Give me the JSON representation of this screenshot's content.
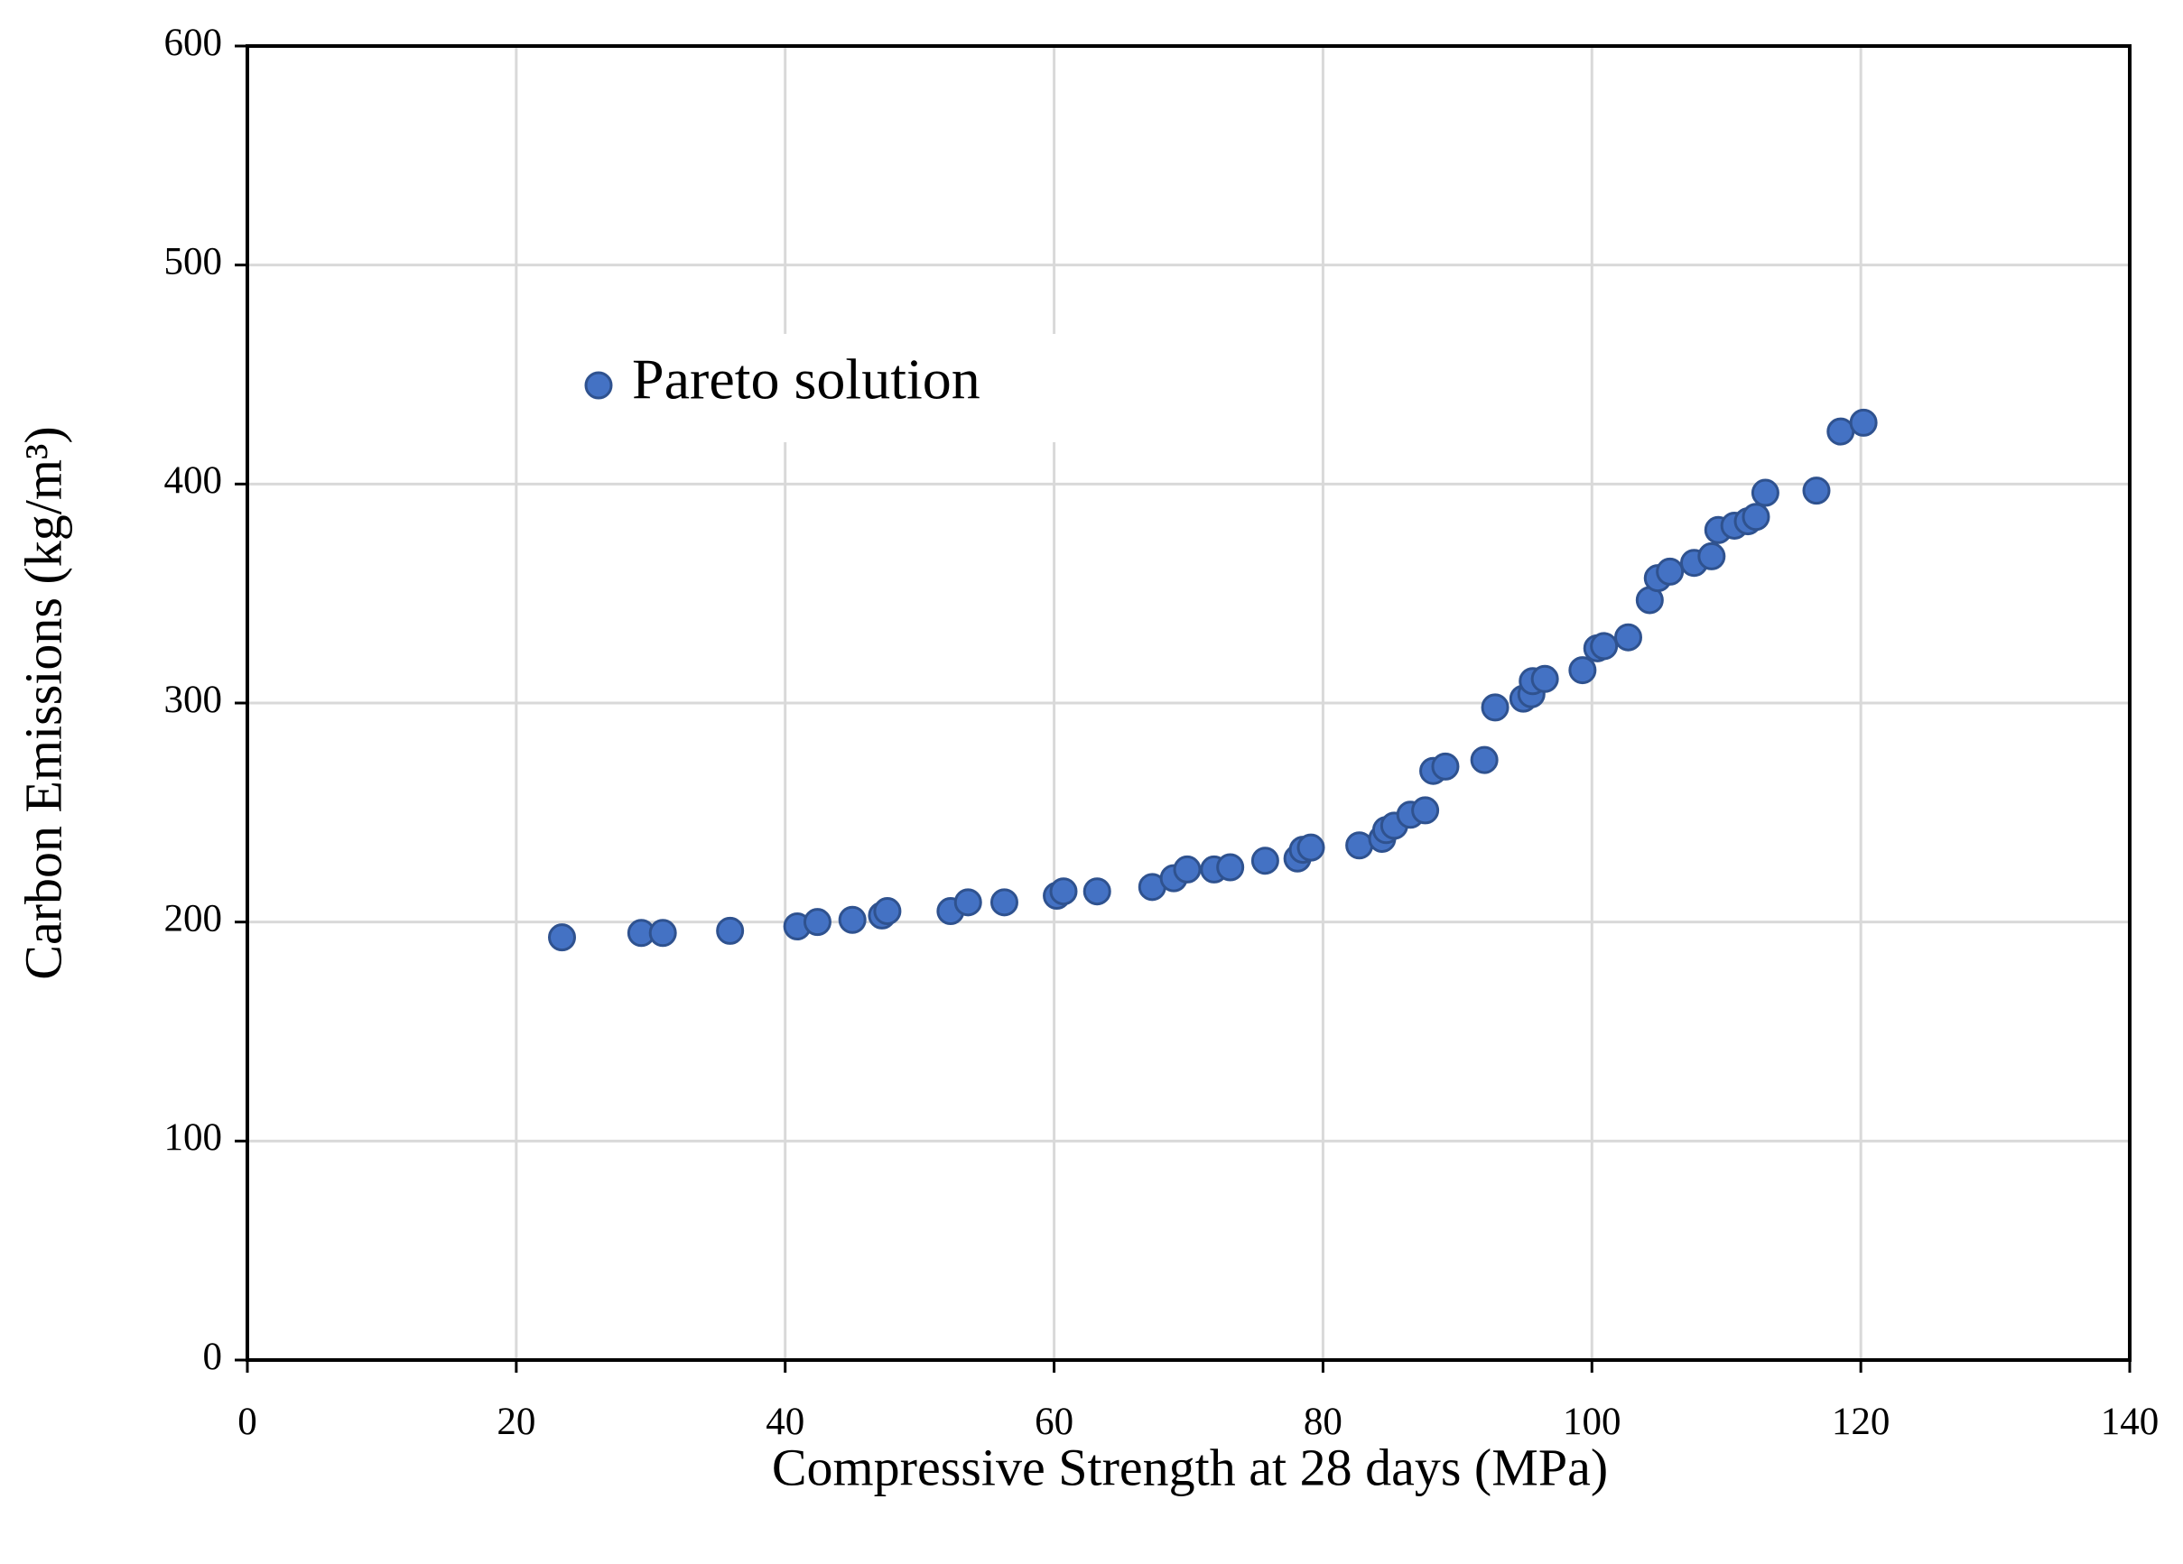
{
  "chart_data": {
    "type": "scatter",
    "x_label": "Compressive Strength at 28 days (MPa)",
    "y_label": "Carbon Emissions (kg/m³)",
    "x": [
      23.4,
      29.3,
      30.9,
      35.9,
      40.9,
      42.4,
      45.0,
      47.2,
      47.6,
      52.3,
      53.6,
      56.3,
      60.2,
      60.7,
      63.2,
      67.3,
      68.9,
      69.9,
      71.9,
      73.1,
      75.7,
      78.1,
      78.5,
      79.1,
      82.7,
      84.4,
      84.7,
      85.3,
      86.5,
      87.6,
      88.2,
      89.1,
      92.0,
      92.8,
      94.9,
      95.5,
      95.6,
      96.5,
      99.3,
      100.4,
      100.9,
      102.7,
      104.3,
      104.9,
      105.8,
      107.6,
      108.9,
      109.4,
      110.6,
      111.6,
      112.2,
      112.9,
      116.7,
      118.5,
      120.2
    ],
    "series": [
      {
        "name": "Pareto solution",
        "color": "#4472c4",
        "values": [
          193,
          195,
          195,
          196,
          198,
          200,
          201,
          203,
          205,
          205,
          209,
          209,
          212,
          214,
          214,
          216,
          220,
          224,
          224,
          225,
          228,
          229,
          233,
          234,
          235,
          238,
          242,
          244,
          249,
          251,
          269,
          271,
          274,
          298,
          302,
          304,
          310,
          311,
          315,
          325,
          326,
          330,
          347,
          357,
          360,
          364,
          367,
          379,
          381,
          383,
          385,
          396,
          397,
          424,
          428
        ]
      }
    ],
    "xlim": [
      0,
      140
    ],
    "xticks": [
      0,
      20,
      40,
      60,
      80,
      100,
      120,
      140
    ],
    "ylim": [
      0,
      600
    ],
    "yticks": [
      0,
      100,
      200,
      300,
      400,
      500,
      600
    ],
    "grid": true,
    "legend": "upper left"
  }
}
